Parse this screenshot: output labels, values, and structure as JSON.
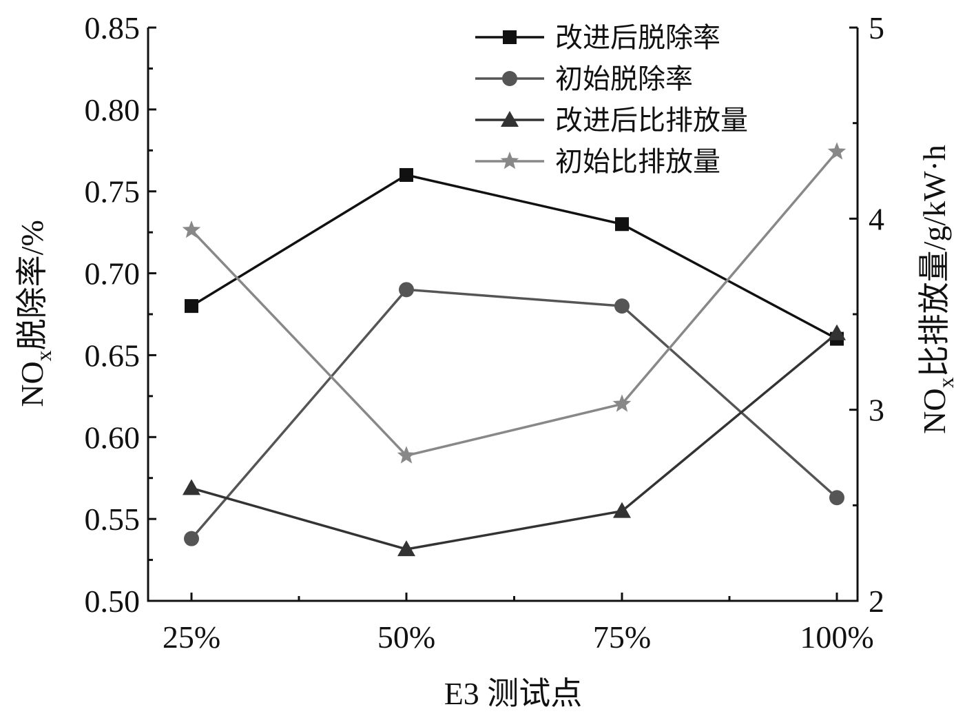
{
  "chart_data": {
    "type": "line",
    "categories": [
      "25%",
      "50%",
      "75%",
      "100%"
    ],
    "xlabel": "E3 测试点",
    "ylabel_left": {
      "main": "NO",
      "sub": "x",
      "rest": "脱除率/%"
    },
    "ylabel_right": {
      "main": "NO",
      "sub": "x",
      "rest": "比排放量/g/kW·h"
    },
    "y_left": {
      "min": 0.5,
      "max": 0.85,
      "ticks": [
        "0.50",
        "0.55",
        "0.60",
        "0.65",
        "0.70",
        "0.75",
        "0.80",
        "0.85"
      ]
    },
    "y_right": {
      "min": 2,
      "max": 5,
      "ticks": [
        "2",
        "3",
        "4",
        "5"
      ]
    },
    "legend_position": "top-right",
    "series": [
      {
        "name": "改进后脱除率",
        "axis": "left",
        "marker": "square",
        "color": "#111111",
        "values": [
          0.68,
          0.76,
          0.73,
          0.66
        ]
      },
      {
        "name": "初始脱除率",
        "axis": "left",
        "marker": "circle",
        "color": "#555555",
        "values": [
          0.538,
          0.69,
          0.68,
          0.563
        ]
      },
      {
        "name": "改进后比排放量",
        "axis": "right",
        "marker": "triangle",
        "color": "#333333",
        "values": [
          2.59,
          2.27,
          2.47,
          3.4
        ]
      },
      {
        "name": "初始比排放量",
        "axis": "right",
        "marker": "star",
        "color": "#888888",
        "values": [
          3.94,
          2.76,
          3.03,
          4.35
        ]
      }
    ]
  }
}
